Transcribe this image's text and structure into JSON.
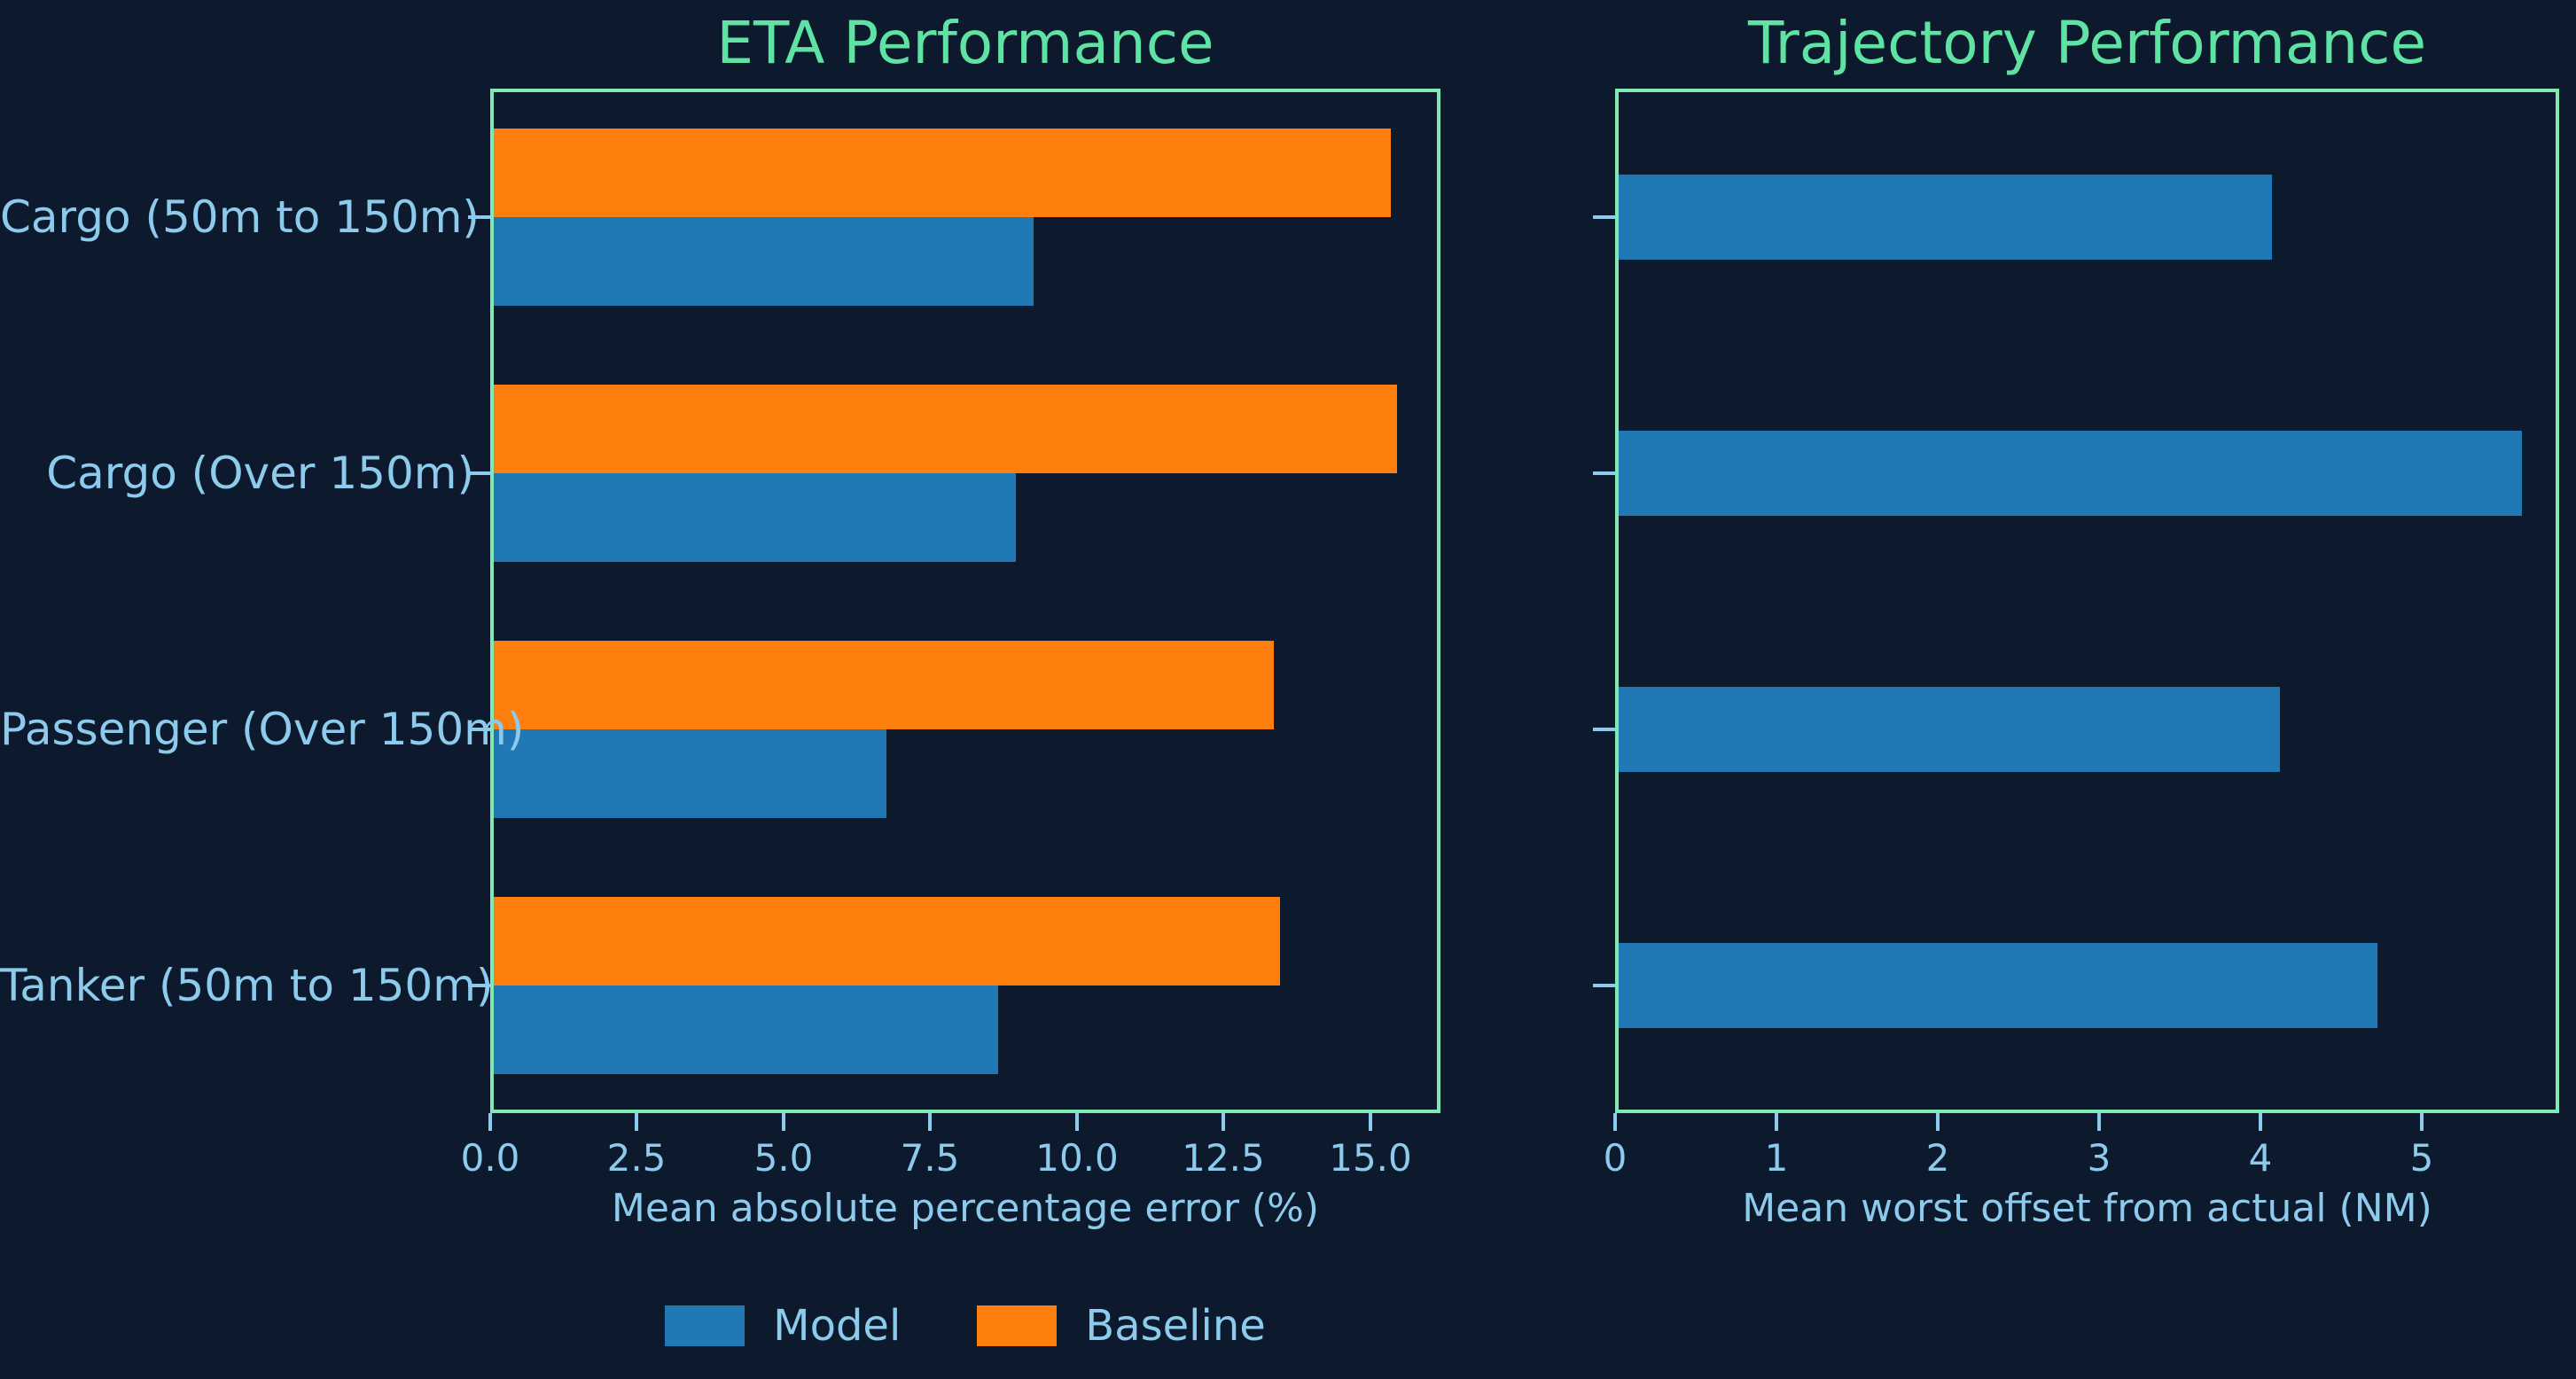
{
  "figure": {
    "background_color": "#0d1a2d",
    "axes_border_color": "#80e8b4",
    "title_color": "#5ee3a4",
    "tick_label_color": "#8ccbec"
  },
  "legend": {
    "items": [
      {
        "label": "Model",
        "color": "#2078b4"
      },
      {
        "label": "Baseline",
        "color": "#ff7f0e"
      }
    ]
  },
  "chart_data": [
    {
      "type": "bar",
      "orientation": "horizontal",
      "title": "ETA Performance",
      "xlabel": "Mean absolute percentage error (%)",
      "ylabel": "",
      "categories": [
        "Cargo (50m to 150m)",
        "Cargo (Over 150m)",
        "Passenger (Over 150m)",
        "Tanker (50m to 150m)"
      ],
      "series": [
        {
          "name": "Model",
          "color": "#2078b4",
          "values": [
            9.2,
            8.9,
            6.7,
            8.6
          ]
        },
        {
          "name": "Baseline",
          "color": "#ff7f0e",
          "values": [
            15.3,
            15.4,
            13.3,
            13.4
          ]
        }
      ],
      "xticks": [
        0,
        2.5,
        5,
        7.5,
        10,
        12.5,
        15
      ],
      "xtick_labels": [
        "0.0",
        "2.5",
        "5.0",
        "7.5",
        "10.0",
        "12.5",
        "15.0"
      ],
      "xlim": [
        0,
        16.2
      ],
      "grid": false,
      "show_category_labels": true
    },
    {
      "type": "bar",
      "orientation": "horizontal",
      "title": "Trajectory Performance",
      "xlabel": "Mean worst offset from actual (NM)",
      "ylabel": "",
      "categories": [
        "Cargo (50m to 150m)",
        "Cargo (Over 150m)",
        "Passenger (Over 150m)",
        "Tanker (50m to 150m)"
      ],
      "series": [
        {
          "name": "Model",
          "color": "#2078b4",
          "values": [
            4.05,
            5.6,
            4.1,
            4.7
          ]
        }
      ],
      "xticks": [
        0,
        1,
        2,
        3,
        4,
        5
      ],
      "xtick_labels": [
        "0",
        "1",
        "2",
        "3",
        "4",
        "5"
      ],
      "xlim": [
        0,
        5.85
      ],
      "grid": false,
      "show_category_labels": false
    }
  ]
}
